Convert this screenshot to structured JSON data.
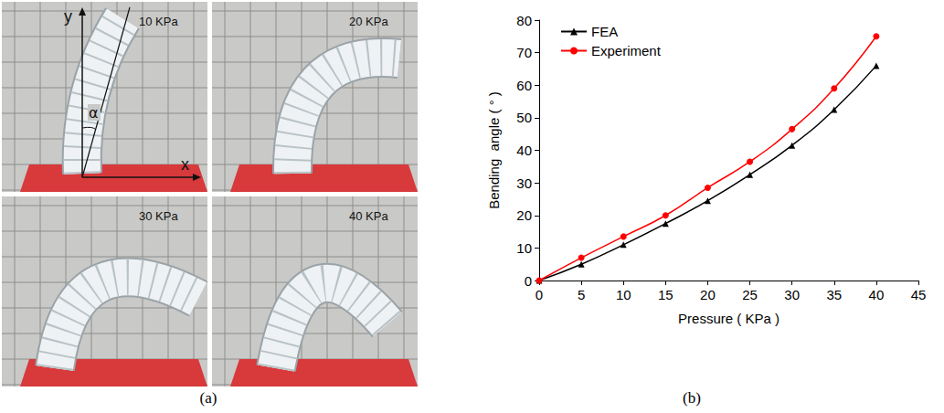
{
  "chart_data": {
    "type": "line",
    "x_label": "Pressure ( KPa )",
    "y_label": "Bending  angle ( ° )",
    "x": [
      0,
      5,
      10,
      15,
      20,
      25,
      30,
      35,
      40
    ],
    "series": [
      {
        "name": "FEA",
        "color": "#000000",
        "marker": "triangle",
        "line_style": "solid",
        "values": [
          0,
          5,
          11,
          17.5,
          24.5,
          32.5,
          41.5,
          52.5,
          66
        ]
      },
      {
        "name": "Experiment",
        "color": "#ff0000",
        "marker": "circle",
        "line_style": "solid",
        "values": [
          0,
          7,
          13.5,
          20,
          28.5,
          36.5,
          46.5,
          59,
          75
        ]
      }
    ],
    "xlim": [
      0,
      45
    ],
    "xticks": [
      0,
      5,
      10,
      15,
      20,
      25,
      30,
      35,
      40,
      45
    ],
    "ylim": [
      0,
      80
    ],
    "yticks": [
      0,
      10,
      20,
      30,
      40,
      50,
      60,
      70,
      80
    ],
    "grid": false,
    "legend": "upper left"
  },
  "panels": {
    "a": {
      "label": "(a)",
      "photos": [
        "10 KPa",
        "20 KPa",
        "30 KPa",
        "40 KPa"
      ],
      "axis_labels": {
        "x": "x",
        "y": "y",
        "angle": "α"
      }
    },
    "b": {
      "label": "(b)"
    }
  }
}
